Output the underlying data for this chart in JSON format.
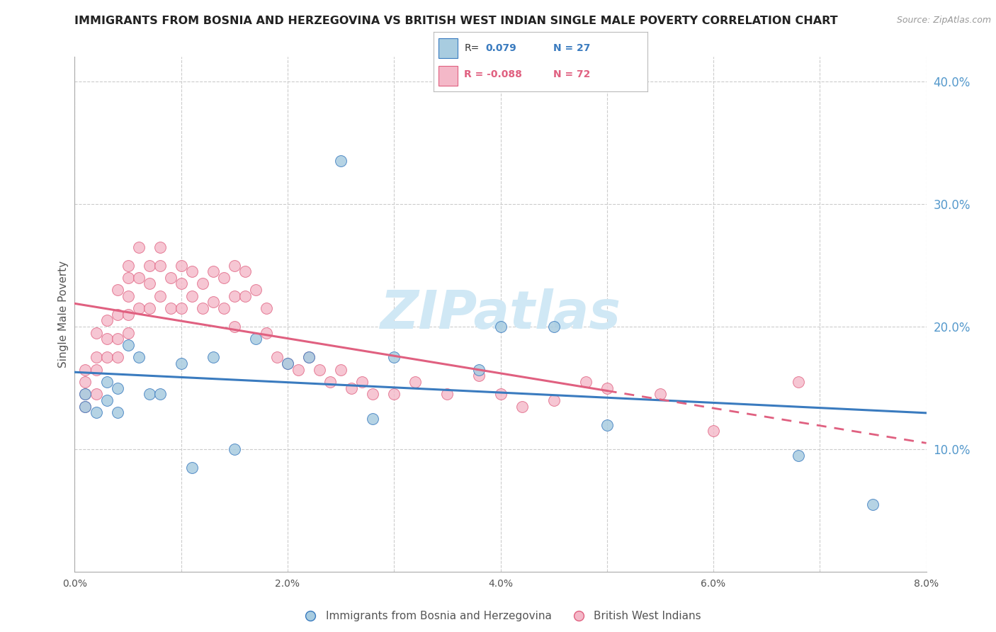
{
  "title": "IMMIGRANTS FROM BOSNIA AND HERZEGOVINA VS BRITISH WEST INDIAN SINGLE MALE POVERTY CORRELATION CHART",
  "source": "Source: ZipAtlas.com",
  "ylabel_left": "Single Male Poverty",
  "legend1_label": "Immigrants from Bosnia and Herzegovina",
  "legend2_label": "British West Indians",
  "xlim": [
    0.0,
    0.08
  ],
  "ylim": [
    0.0,
    0.42
  ],
  "yticks_right": [
    0.1,
    0.2,
    0.3,
    0.4
  ],
  "ytick_labels_right": [
    "10.0%",
    "20.0%",
    "30.0%",
    "40.0%"
  ],
  "xticks": [
    0.0,
    0.01,
    0.02,
    0.03,
    0.04,
    0.05,
    0.06,
    0.07,
    0.08
  ],
  "xtick_labels": [
    "0.0%",
    "",
    "2.0%",
    "",
    "4.0%",
    "",
    "6.0%",
    "",
    "8.0%"
  ],
  "color_blue": "#a8cce0",
  "color_pink": "#f4b8c8",
  "color_line_blue": "#3a7bbf",
  "color_line_pink": "#e06080",
  "color_axis_right": "#5599cc",
  "watermark_color": "#d0e8f5",
  "background_color": "#ffffff",
  "grid_color": "#cccccc",
  "title_color": "#222222",
  "bosnia_x": [
    0.001,
    0.001,
    0.002,
    0.003,
    0.003,
    0.004,
    0.004,
    0.005,
    0.006,
    0.007,
    0.008,
    0.01,
    0.011,
    0.013,
    0.015,
    0.017,
    0.02,
    0.022,
    0.025,
    0.028,
    0.03,
    0.038,
    0.04,
    0.045,
    0.05,
    0.068,
    0.075
  ],
  "bosnia_y": [
    0.145,
    0.135,
    0.13,
    0.155,
    0.14,
    0.13,
    0.15,
    0.185,
    0.175,
    0.145,
    0.145,
    0.17,
    0.085,
    0.175,
    0.1,
    0.19,
    0.17,
    0.175,
    0.335,
    0.125,
    0.175,
    0.165,
    0.2,
    0.2,
    0.12,
    0.095,
    0.055
  ],
  "bwi_x": [
    0.001,
    0.001,
    0.001,
    0.001,
    0.002,
    0.002,
    0.002,
    0.002,
    0.003,
    0.003,
    0.003,
    0.004,
    0.004,
    0.004,
    0.004,
    0.005,
    0.005,
    0.005,
    0.005,
    0.005,
    0.006,
    0.006,
    0.006,
    0.007,
    0.007,
    0.007,
    0.008,
    0.008,
    0.008,
    0.009,
    0.009,
    0.01,
    0.01,
    0.01,
    0.011,
    0.011,
    0.012,
    0.012,
    0.013,
    0.013,
    0.014,
    0.014,
    0.015,
    0.015,
    0.015,
    0.016,
    0.016,
    0.017,
    0.018,
    0.018,
    0.019,
    0.02,
    0.021,
    0.022,
    0.023,
    0.024,
    0.025,
    0.026,
    0.027,
    0.028,
    0.03,
    0.032,
    0.035,
    0.038,
    0.04,
    0.042,
    0.045,
    0.048,
    0.05,
    0.055,
    0.06,
    0.068
  ],
  "bwi_y": [
    0.165,
    0.155,
    0.145,
    0.135,
    0.195,
    0.175,
    0.165,
    0.145,
    0.205,
    0.19,
    0.175,
    0.23,
    0.21,
    0.19,
    0.175,
    0.25,
    0.24,
    0.225,
    0.21,
    0.195,
    0.265,
    0.24,
    0.215,
    0.25,
    0.235,
    0.215,
    0.265,
    0.25,
    0.225,
    0.24,
    0.215,
    0.25,
    0.235,
    0.215,
    0.245,
    0.225,
    0.235,
    0.215,
    0.245,
    0.22,
    0.24,
    0.215,
    0.25,
    0.225,
    0.2,
    0.245,
    0.225,
    0.23,
    0.215,
    0.195,
    0.175,
    0.17,
    0.165,
    0.175,
    0.165,
    0.155,
    0.165,
    0.15,
    0.155,
    0.145,
    0.145,
    0.155,
    0.145,
    0.16,
    0.145,
    0.135,
    0.14,
    0.155,
    0.15,
    0.145,
    0.115,
    0.155
  ]
}
